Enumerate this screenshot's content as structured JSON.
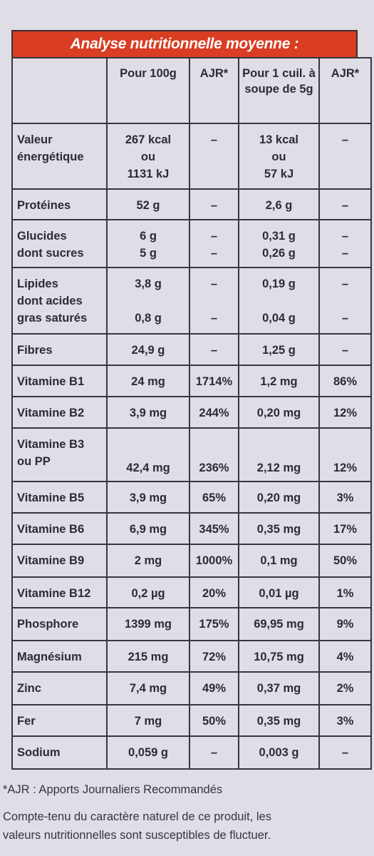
{
  "title": "Analyse nutritionnelle moyenne :",
  "headers": {
    "h1": "Pour 100g",
    "h2": "AJR*",
    "h3_line1": "Pour 1 cuil.",
    "h3_line2": "à soupe",
    "h3_line3": "de 5g",
    "h4": "AJR*"
  },
  "rows": [
    {
      "label_lines": [
        "Valeur",
        "énergétique"
      ],
      "per100_lines": [
        "267 kcal",
        "ou",
        "1131 kJ"
      ],
      "ajr100": "–",
      "perSpoon_lines": [
        "13 kcal",
        "ou",
        "57 kJ"
      ],
      "ajrSpoon": "–"
    },
    {
      "label_lines": [
        "Protéines"
      ],
      "per100_lines": [
        "52 g"
      ],
      "ajr100": "–",
      "perSpoon_lines": [
        "2,6 g"
      ],
      "ajrSpoon": "–"
    },
    {
      "label_lines": [
        "Glucides",
        "dont sucres"
      ],
      "per100_lines": [
        "6 g",
        "5 g"
      ],
      "ajr100_lines": [
        "–",
        "–"
      ],
      "perSpoon_lines": [
        "0,31 g",
        "0,26 g"
      ],
      "ajrSpoon_lines": [
        "–",
        "–"
      ]
    },
    {
      "label_lines": [
        "Lipides",
        "dont acides",
        "gras saturés"
      ],
      "per100_lines": [
        "3,8 g",
        "",
        "0,8 g"
      ],
      "ajr100_lines": [
        "–",
        "",
        "–"
      ],
      "perSpoon_lines": [
        "0,19 g",
        "",
        "0,04 g"
      ],
      "ajrSpoon_lines": [
        "–",
        "",
        "–"
      ]
    },
    {
      "label_lines": [
        "Fibres"
      ],
      "per100_lines": [
        "24,9 g"
      ],
      "ajr100": "–",
      "perSpoon_lines": [
        "1,25 g"
      ],
      "ajrSpoon": "–"
    },
    {
      "label_lines": [
        "Vitamine B1"
      ],
      "per100_lines": [
        "24 mg"
      ],
      "ajr100": "1714%",
      "perSpoon_lines": [
        "1,2 mg"
      ],
      "ajrSpoon": "86%"
    },
    {
      "label_lines": [
        "Vitamine B2"
      ],
      "per100_lines": [
        "3,9 mg"
      ],
      "ajr100": "244%",
      "perSpoon_lines": [
        "0,20 mg"
      ],
      "ajrSpoon": "12%"
    },
    {
      "label_lines": [
        "Vitamine B3",
        "ou PP"
      ],
      "per100_lines": [
        "42,4 mg"
      ],
      "ajr100": "236%",
      "perSpoon_lines": [
        "2,12 mg"
      ],
      "ajrSpoon": "12%",
      "bottom": true
    },
    {
      "label_lines": [
        "Vitamine B5"
      ],
      "per100_lines": [
        "3,9 mg"
      ],
      "ajr100": "65%",
      "perSpoon_lines": [
        "0,20 mg"
      ],
      "ajrSpoon": "3%"
    },
    {
      "label_lines": [
        "Vitamine B6"
      ],
      "per100_lines": [
        "6,9 mg"
      ],
      "ajr100": "345%",
      "perSpoon_lines": [
        "0,35 mg"
      ],
      "ajrSpoon": "17%"
    },
    {
      "label_lines": [
        "Vitamine B9"
      ],
      "per100_lines": [
        "2 mg"
      ],
      "ajr100": "1000%",
      "perSpoon_lines": [
        "0,1 mg"
      ],
      "ajrSpoon": "50%"
    },
    {
      "label_lines": [
        "Vitamine B12"
      ],
      "per100_lines": [
        "0,2 µg"
      ],
      "ajr100": "20%",
      "perSpoon_lines": [
        "0,01 µg"
      ],
      "ajrSpoon": "1%"
    },
    {
      "label_lines": [
        "Phosphore"
      ],
      "per100_lines": [
        "1399 mg"
      ],
      "ajr100": "175%",
      "perSpoon_lines": [
        "69,95 mg"
      ],
      "ajrSpoon": "9%"
    },
    {
      "label_lines": [
        "Magnésium"
      ],
      "per100_lines": [
        "215 mg"
      ],
      "ajr100": "72%",
      "perSpoon_lines": [
        "10,75 mg"
      ],
      "ajrSpoon": "4%"
    },
    {
      "label_lines": [
        "Zinc"
      ],
      "per100_lines": [
        "7,4 mg"
      ],
      "ajr100": "49%",
      "perSpoon_lines": [
        "0,37 mg"
      ],
      "ajrSpoon": "2%"
    },
    {
      "label_lines": [
        "Fer"
      ],
      "per100_lines": [
        "7 mg"
      ],
      "ajr100": "50%",
      "perSpoon_lines": [
        "0,35 mg"
      ],
      "ajrSpoon": "3%"
    },
    {
      "label_lines": [
        "Sodium"
      ],
      "per100_lines": [
        "0,059 g"
      ],
      "ajr100": "–",
      "perSpoon_lines": [
        "0,003 g"
      ],
      "ajrSpoon": "–"
    }
  ],
  "footnote": "*AJR : Apports Journaliers Recommandés",
  "disclaimer_line1": "Compte-tenu du caractère naturel de ce produit, les",
  "disclaimer_line2": "valeurs nutritionnelles sont susceptibles de fluctuer.",
  "colors": {
    "title_bg": "#d93d22",
    "title_text": "#ffffff",
    "background": "#dfdde5"
  }
}
